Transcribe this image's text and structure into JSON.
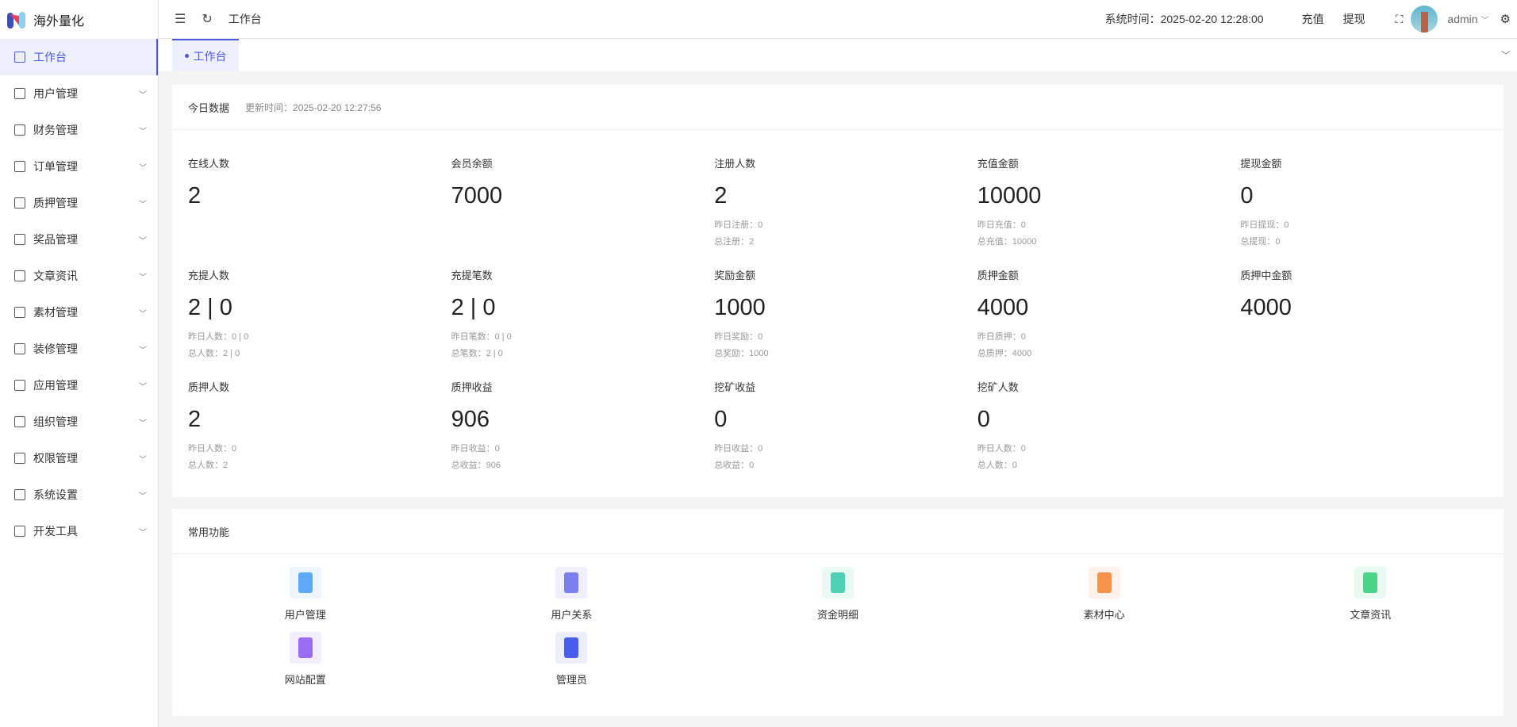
{
  "app": {
    "title": "海外量化"
  },
  "sidebar": {
    "items": [
      {
        "label": "工作台",
        "icon": "monitor-icon",
        "active": true
      },
      {
        "label": "用户管理",
        "icon": "user-icon"
      },
      {
        "label": "财务管理",
        "icon": "chart-icon"
      },
      {
        "label": "订单管理",
        "icon": "order-icon"
      },
      {
        "label": "质押管理",
        "icon": "copy-icon"
      },
      {
        "label": "奖品管理",
        "icon": "bag-icon"
      },
      {
        "label": "文章资讯",
        "icon": "message-icon"
      },
      {
        "label": "素材管理",
        "icon": "image-icon"
      },
      {
        "label": "装修管理",
        "icon": "brush-icon"
      },
      {
        "label": "应用管理",
        "icon": "app-icon"
      },
      {
        "label": "组织管理",
        "icon": "building-icon"
      },
      {
        "label": "权限管理",
        "icon": "lock-icon"
      },
      {
        "label": "系统设置",
        "icon": "gear-icon"
      },
      {
        "label": "开发工具",
        "icon": "pen-icon"
      }
    ]
  },
  "header": {
    "breadcrumb": "工作台",
    "system_time": "系统时间：2025-02-20 12:28:00",
    "recharge": "充值",
    "withdraw": "提现",
    "user": "admin"
  },
  "tabs": [
    {
      "label": "工作台"
    }
  ],
  "today": {
    "title": "今日数据",
    "updated": "更新时间：2025-02-20 12:27:56",
    "stats": [
      {
        "title": "在线人数",
        "value": "2",
        "sub": []
      },
      {
        "title": "会员余额",
        "value": "7000",
        "sub": []
      },
      {
        "title": "注册人数",
        "value": "2",
        "sub": [
          "昨日注册：0",
          "总注册：2"
        ]
      },
      {
        "title": "充值金额",
        "value": "10000",
        "sub": [
          "昨日充值：0",
          "总充值：10000"
        ]
      },
      {
        "title": "提现金额",
        "value": "0",
        "sub": [
          "昨日提现：0",
          "总提现：0"
        ]
      },
      {
        "title": "充提人数",
        "value": "2 | 0",
        "sub": [
          "昨日人数：0 | 0",
          "总人数：2 | 0"
        ]
      },
      {
        "title": "充提笔数",
        "value": "2 | 0",
        "sub": [
          "昨日笔数：0 | 0",
          "总笔数：2 | 0"
        ]
      },
      {
        "title": "奖励金额",
        "value": "1000",
        "sub": [
          "昨日奖励：0",
          "总奖励：1000"
        ]
      },
      {
        "title": "质押金额",
        "value": "4000",
        "sub": [
          "昨日质押：0",
          "总质押：4000"
        ]
      },
      {
        "title": "质押中金额",
        "value": "4000",
        "sub": []
      },
      {
        "title": "质押人数",
        "value": "2",
        "sub": [
          "昨日人数：0",
          "总人数：2"
        ]
      },
      {
        "title": "质押收益",
        "value": "906",
        "sub": [
          "昨日收益：0",
          "总收益：906"
        ]
      },
      {
        "title": "挖矿收益",
        "value": "0",
        "sub": [
          "昨日收益：0",
          "总收益：0"
        ]
      },
      {
        "title": "挖矿人数",
        "value": "0",
        "sub": [
          "昨日人数：0",
          "总人数：0"
        ]
      }
    ]
  },
  "common": {
    "title": "常用功能",
    "items": [
      {
        "label": "用户管理",
        "icon": "user-manage-icon",
        "color": "#5ea8f7",
        "bg": "#edf5fe"
      },
      {
        "label": "用户关系",
        "icon": "user-relation-icon",
        "color": "#7b7ff0",
        "bg": "#efeffd"
      },
      {
        "label": "资金明细",
        "icon": "funds-book-icon",
        "color": "#4fd1b5",
        "bg": "#ecfaf6"
      },
      {
        "label": "素材中心",
        "icon": "material-code-icon",
        "color": "#f7924a",
        "bg": "#fef2ea"
      },
      {
        "label": "文章资讯",
        "icon": "article-box-icon",
        "color": "#4cd48a",
        "bg": "#e9faf0"
      },
      {
        "label": "网站配置",
        "icon": "website-config-icon",
        "color": "#9a6cf2",
        "bg": "#f3eefd"
      },
      {
        "label": "管理员",
        "icon": "admin-tie-icon",
        "color": "#4a5bef",
        "bg": "#ecedfd"
      }
    ]
  }
}
